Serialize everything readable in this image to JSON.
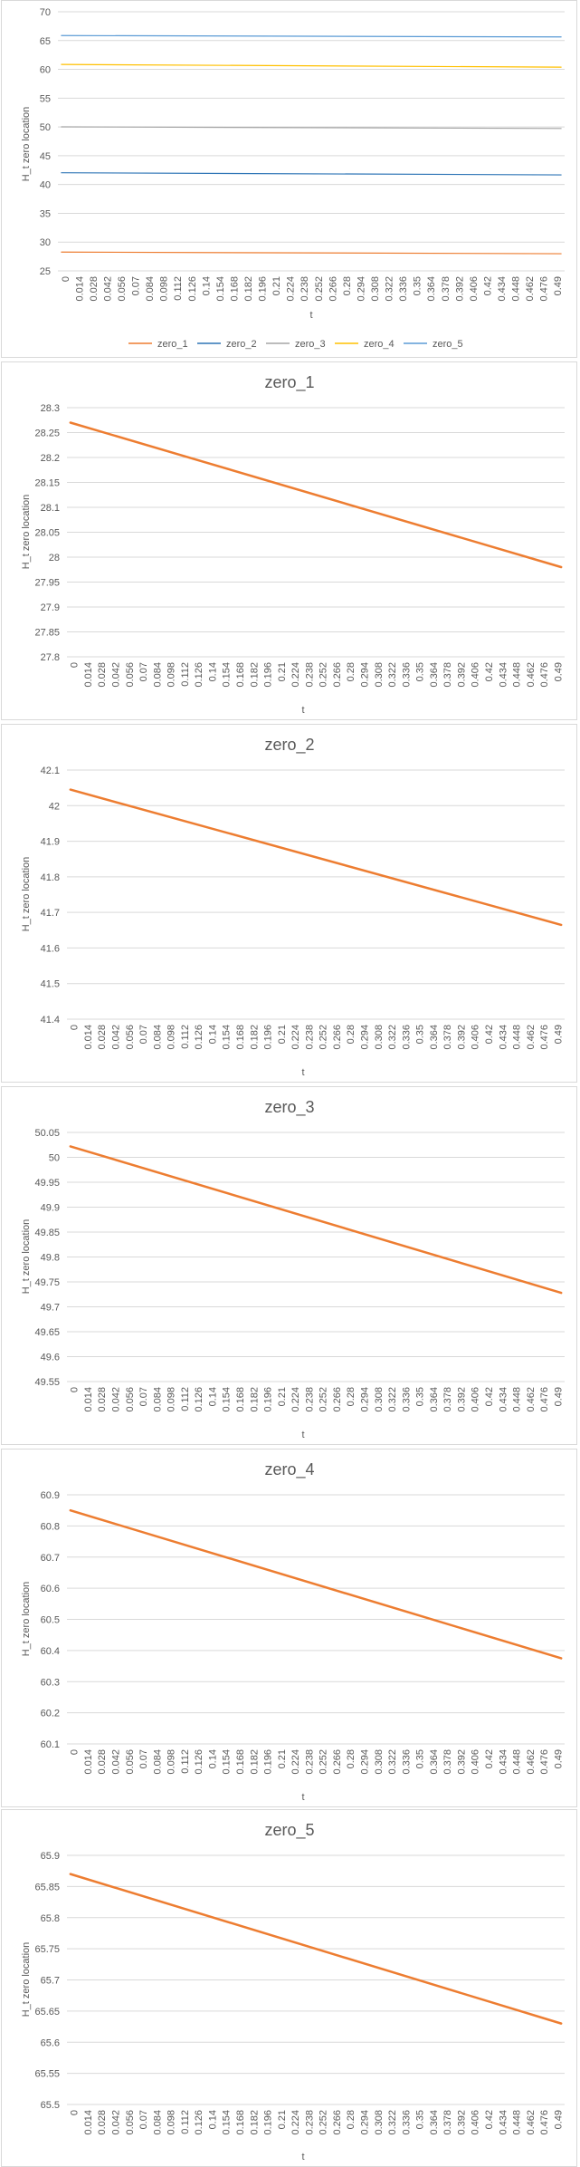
{
  "charts": {
    "overview": {
      "ylabel": "H_t zero location",
      "xlabel": "t"
    },
    "zero_1": {
      "title": "zero_1",
      "ylabel": "H_t zero location",
      "xlabel": "t"
    },
    "zero_2": {
      "title": "zero_2",
      "ylabel": "H_t zero location",
      "xlabel": "t"
    },
    "zero_3": {
      "title": "zero_3",
      "ylabel": "H_t zero location",
      "xlabel": "t"
    },
    "zero_4": {
      "title": "zero_4",
      "ylabel": "H_t zero location",
      "xlabel": "t"
    },
    "zero_5": {
      "title": "zero_5",
      "ylabel": "H_t zero location",
      "xlabel": "t"
    }
  },
  "chart_data": [
    {
      "id": "overview",
      "type": "line",
      "title": "",
      "xlabel": "t",
      "ylabel": "H_t zero location",
      "x_ticks": [
        "0",
        "0.014",
        "0.028",
        "0.042",
        "0.056",
        "0.07",
        "0.084",
        "0.098",
        "0.112",
        "0.126",
        "0.14",
        "0.154",
        "0.168",
        "0.182",
        "0.196",
        "0.21",
        "0.224",
        "0.238",
        "0.252",
        "0.266",
        "0.28",
        "0.294",
        "0.308",
        "0.322",
        "0.336",
        "0.35",
        "0.364",
        "0.378",
        "0.392",
        "0.406",
        "0.42",
        "0.434",
        "0.448",
        "0.462",
        "0.476",
        "0.49"
      ],
      "x_range": [
        0,
        0.5
      ],
      "ylim": [
        25,
        70
      ],
      "y_ticks": [
        25,
        30,
        35,
        40,
        45,
        50,
        55,
        60,
        65,
        70
      ],
      "grid": true,
      "legend": "bottom",
      "series": [
        {
          "name": "zero_1",
          "color": "#ed7d31",
          "start": 28.27,
          "end": 27.98
        },
        {
          "name": "zero_2",
          "color": "#2e75b6",
          "start": 42.04,
          "end": 41.67
        },
        {
          "name": "zero_3",
          "color": "#a5a5a5",
          "start": 50.02,
          "end": 49.73
        },
        {
          "name": "zero_4",
          "color": "#ffc000",
          "start": 60.85,
          "end": 60.38
        },
        {
          "name": "zero_5",
          "color": "#5b9bd5",
          "start": 65.87,
          "end": 65.63
        }
      ]
    },
    {
      "id": "zero_1",
      "type": "line",
      "title": "zero_1",
      "xlabel": "t",
      "ylabel": "H_t zero location",
      "x_range": [
        0,
        0.5
      ],
      "ylim": [
        27.8,
        28.3
      ],
      "y_ticks": [
        "27.8",
        "27.85",
        "27.9",
        "27.95",
        "28",
        "28.05",
        "28.1",
        "28.15",
        "28.2",
        "28.25",
        "28.3"
      ],
      "grid": true,
      "series": [
        {
          "color": "#ed7d31",
          "start": 28.27,
          "end": 27.98
        }
      ]
    },
    {
      "id": "zero_2",
      "type": "line",
      "title": "zero_2",
      "xlabel": "t",
      "ylabel": "H_t zero location",
      "x_range": [
        0,
        0.5
      ],
      "ylim": [
        41.4,
        42.1
      ],
      "y_ticks": [
        "41.4",
        "41.5",
        "41.6",
        "41.7",
        "41.8",
        "41.9",
        "42",
        "42.1"
      ],
      "grid": true,
      "series": [
        {
          "color": "#ed7d31",
          "start": 42.045,
          "end": 41.665
        }
      ]
    },
    {
      "id": "zero_3",
      "type": "line",
      "title": "zero_3",
      "xlabel": "t",
      "ylabel": "H_t zero location",
      "x_range": [
        0,
        0.5
      ],
      "ylim": [
        49.55,
        50.05
      ],
      "y_ticks": [
        "49.55",
        "49.6",
        "49.65",
        "49.7",
        "49.75",
        "49.8",
        "49.85",
        "49.9",
        "49.95",
        "50",
        "50.05"
      ],
      "grid": true,
      "series": [
        {
          "color": "#ed7d31",
          "start": 50.022,
          "end": 49.728
        }
      ]
    },
    {
      "id": "zero_4",
      "type": "line",
      "title": "zero_4",
      "xlabel": "t",
      "ylabel": "H_t zero location",
      "x_range": [
        0,
        0.5
      ],
      "ylim": [
        60.1,
        60.9
      ],
      "y_ticks": [
        "60.1",
        "60.2",
        "60.3",
        "60.4",
        "60.5",
        "60.6",
        "60.7",
        "60.8",
        "60.9"
      ],
      "grid": true,
      "series": [
        {
          "color": "#ed7d31",
          "start": 60.85,
          "end": 60.375
        }
      ]
    },
    {
      "id": "zero_5",
      "type": "line",
      "title": "zero_5",
      "xlabel": "t",
      "ylabel": "H_t zero location",
      "x_range": [
        0,
        0.5
      ],
      "ylim": [
        65.5,
        65.9
      ],
      "y_ticks": [
        "65.5",
        "65.55",
        "65.6",
        "65.65",
        "65.7",
        "65.75",
        "65.8",
        "65.85",
        "65.9"
      ],
      "grid": true,
      "series": [
        {
          "color": "#ed7d31",
          "start": 65.87,
          "end": 65.63
        }
      ]
    }
  ]
}
